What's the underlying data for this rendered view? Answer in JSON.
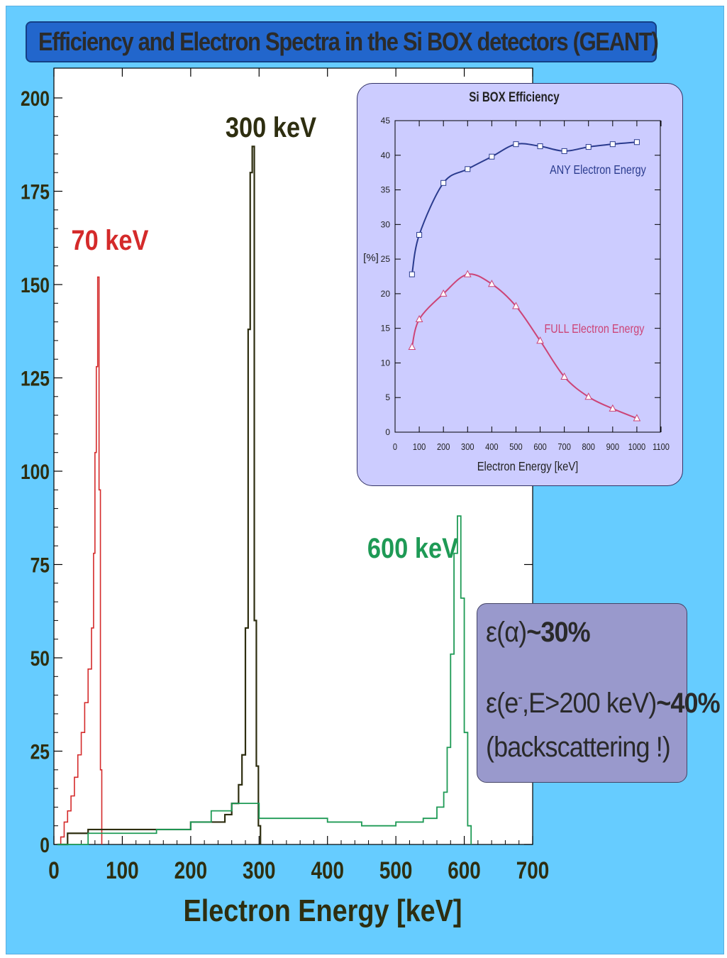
{
  "title": "Efficiency and Electron Spectra in the Si BOX detectors (GEANT)",
  "main_chart_labels": {
    "peak_70": "70 keV",
    "peak_300": "300 keV",
    "peak_600": "600 keV",
    "xlabel": "Electron Energy [keV]"
  },
  "efficiency_box": {
    "alpha_prefix": "ε(α)",
    "alpha_value": "~30%",
    "electron_prefix": "ε(e",
    "electron_superscript": "-",
    "electron_condition": ",E>200 keV)",
    "electron_value": "~40%",
    "note": "(backscattering !)"
  },
  "colors": {
    "red_70": "#d42a2a",
    "black_300": "#2e2e10",
    "green_600": "#1e9a55",
    "any_curve": "#2a3b8e",
    "full_curve": "#cc4477"
  },
  "chart_data": [
    {
      "type": "line",
      "title": "",
      "xlabel": "Electron Energy [keV]",
      "ylabel": "",
      "xlim": [
        0,
        700
      ],
      "ylim": [
        0,
        200
      ],
      "xticks": [
        0,
        100,
        200,
        300,
        400,
        500,
        600,
        700
      ],
      "yticks": [
        0,
        25,
        50,
        75,
        100,
        125,
        150,
        175,
        200
      ],
      "series": [
        {
          "name": "70 keV",
          "x": [
            5,
            10,
            15,
            20,
            25,
            30,
            35,
            40,
            45,
            50,
            55,
            58,
            60,
            62,
            64,
            66,
            68,
            70
          ],
          "values": [
            0,
            2,
            6,
            9,
            13,
            18,
            24,
            30,
            38,
            47,
            58,
            78,
            105,
            128,
            152,
            95,
            20,
            0
          ]
        },
        {
          "name": "300 keV",
          "x": [
            5,
            20,
            50,
            100,
            150,
            200,
            230,
            250,
            260,
            270,
            275,
            280,
            284,
            287,
            290,
            293,
            296,
            299,
            302
          ],
          "values": [
            0,
            3,
            4,
            4,
            4,
            6,
            6,
            8,
            11,
            16,
            24,
            58,
            138,
            180,
            187,
            60,
            21,
            5,
            0
          ]
        },
        {
          "name": "600 keV",
          "x": [
            5,
            50,
            100,
            150,
            200,
            230,
            260,
            300,
            350,
            400,
            450,
            500,
            540,
            560,
            570,
            575,
            580,
            585,
            590,
            595,
            600,
            605,
            610
          ],
          "values": [
            0,
            3,
            3,
            4,
            6,
            9,
            11,
            7,
            7,
            6,
            5,
            6,
            7,
            10,
            14,
            26,
            51,
            78,
            88,
            66,
            30,
            5,
            0
          ]
        }
      ],
      "annotations": [
        "70 keV",
        "300 keV",
        "600 keV"
      ]
    },
    {
      "type": "line",
      "title": "Si BOX Efficiency",
      "xlabel": "Electron Energy [keV]",
      "ylabel": "[%]",
      "xlim": [
        0,
        1100
      ],
      "ylim": [
        0,
        45
      ],
      "xticks": [
        0,
        100,
        200,
        300,
        400,
        500,
        600,
        700,
        800,
        900,
        1000,
        1100
      ],
      "yticks": [
        0,
        5,
        10,
        15,
        20,
        25,
        30,
        35,
        40,
        45
      ],
      "series": [
        {
          "name": "ANY Electron Energy",
          "marker": "square",
          "x": [
            70,
            100,
            200,
            300,
            400,
            500,
            600,
            700,
            800,
            900,
            1000
          ],
          "values": [
            22.8,
            28.5,
            36.0,
            38.0,
            39.8,
            41.6,
            41.3,
            40.6,
            41.2,
            41.6,
            41.9
          ]
        },
        {
          "name": "FULL Electron Energy",
          "marker": "triangle",
          "x": [
            70,
            100,
            200,
            300,
            400,
            500,
            600,
            700,
            800,
            900,
            1000
          ],
          "values": [
            12.3,
            16.3,
            20.0,
            22.8,
            21.4,
            18.2,
            13.2,
            8.0,
            5.1,
            3.4,
            2.0
          ]
        }
      ]
    }
  ]
}
